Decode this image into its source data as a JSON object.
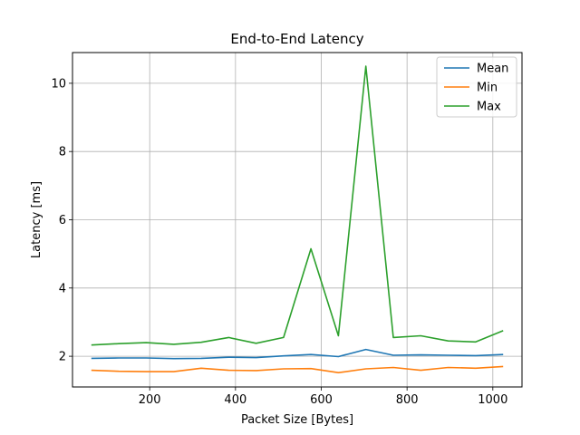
{
  "chart_data": {
    "type": "line",
    "title": "End-to-End Latency",
    "xlabel": "Packet Size [Bytes]",
    "ylabel": "Latency [ms]",
    "xlim": [
      20,
      1068
    ],
    "ylim": [
      1.1,
      10.9
    ],
    "xticks": [
      200,
      400,
      600,
      800,
      1000
    ],
    "yticks": [
      2,
      4,
      6,
      8,
      10
    ],
    "grid": true,
    "legend_position": "top-right",
    "x": [
      64,
      128,
      192,
      256,
      320,
      384,
      448,
      512,
      576,
      640,
      704,
      768,
      832,
      896,
      960,
      1024
    ],
    "series": [
      {
        "name": "Mean",
        "color": "#1f77b4",
        "values": [
          1.94,
          1.95,
          1.95,
          1.93,
          1.94,
          1.97,
          1.96,
          2.01,
          2.05,
          1.99,
          2.2,
          2.03,
          2.04,
          2.03,
          2.02,
          2.05
        ]
      },
      {
        "name": "Min",
        "color": "#ff7f0e",
        "values": [
          1.59,
          1.56,
          1.55,
          1.55,
          1.65,
          1.59,
          1.58,
          1.63,
          1.64,
          1.52,
          1.63,
          1.67,
          1.59,
          1.67,
          1.65,
          1.7
        ]
      },
      {
        "name": "Max",
        "color": "#2ca02c",
        "values": [
          2.33,
          2.37,
          2.4,
          2.35,
          2.41,
          2.55,
          2.38,
          2.55,
          5.15,
          2.6,
          10.5,
          2.55,
          2.6,
          2.45,
          2.42,
          2.75
        ]
      }
    ]
  }
}
